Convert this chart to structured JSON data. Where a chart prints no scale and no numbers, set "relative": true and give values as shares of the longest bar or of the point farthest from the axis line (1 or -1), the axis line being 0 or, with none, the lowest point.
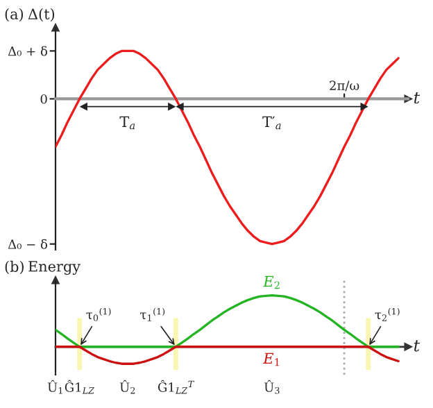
{
  "chart_data": [
    {
      "type": "line",
      "title": "(a)",
      "ylabel": "Δ(t)",
      "xlabel": "t",
      "categories": [
        null,
        null,
        null,
        null,
        null,
        null,
        null,
        null,
        null,
        null,
        null,
        null,
        null,
        null,
        null,
        null,
        null,
        null,
        null,
        null,
        null,
        null,
        null,
        null,
        null,
        null,
        null,
        null,
        null,
        null,
        null,
        null,
        null,
        null,
        null,
        null,
        null,
        null,
        null,
        null,
        null,
        null,
        null,
        null,
        null,
        null,
        null,
        null,
        null,
        null,
        null,
        null,
        null,
        null,
        null,
        null,
        null,
        null
      ],
      "relative": true,
      "series": [
        {
          "color": "#ee1c1c",
          "values": [
            -0.33,
            -0.25,
            -0.16,
            -0.08,
            0,
            0.07,
            0.14,
            0.2,
            0.24,
            0.28,
            0.31,
            0.33,
            0.33,
            0.33,
            0.31,
            0.28,
            0.24,
            0.2,
            0.14,
            0.07,
            0,
            -0.08,
            -0.16,
            -0.25,
            -0.33,
            -0.42,
            -0.51,
            -0.59,
            -0.67,
            -0.74,
            -0.8,
            -0.86,
            -0.91,
            -0.95,
            -0.98,
            -0.99,
            -1,
            -0.99,
            -0.98,
            -0.95,
            -0.91,
            -0.86,
            -0.8,
            -0.74,
            -0.67,
            -0.59,
            -0.51,
            -0.42,
            -0.33,
            -0.25,
            -0.16,
            -0.08,
            0,
            0.07,
            0.14,
            0.2,
            0.24,
            0.28
          ]
        }
      ],
      "annotations": [
        "T$_{a}$",
        "T′$_{a}$",
        "2π/ω",
        "Δ₀ + δ",
        "0",
        "Δ₀ − δ"
      ]
    },
    {
      "type": "line",
      "title": "(b)",
      "ylabel": "Energy",
      "xlabel": "t",
      "relative": true,
      "categories": [
        "Û$_{1}$",
        null,
        null,
        null,
        "Ĝ1$_{LZ}$",
        null,
        null,
        null,
        null,
        null,
        null,
        null,
        "Û$_{2}$",
        null,
        null,
        null,
        null,
        null,
        null,
        null,
        "Ĝ1$_{LZ}$$^{T}$",
        null,
        null,
        null,
        null,
        null,
        null,
        null,
        null,
        null,
        null,
        null,
        null,
        null,
        null,
        null,
        "Û$_{3}$",
        null,
        null,
        null,
        null,
        null,
        null,
        null,
        null,
        null,
        null,
        null,
        null,
        null,
        null,
        null,
        null,
        null,
        null,
        null,
        null,
        null
      ],
      "series": [
        {
          "name": "E$_{2}$",
          "color": "#22b422",
          "values": [
            0.33,
            0.25,
            0.16,
            0.08,
            0,
            0,
            0,
            0,
            0,
            0,
            0,
            0,
            0,
            0,
            0,
            0,
            0,
            0,
            0,
            0,
            0,
            0.08,
            0.16,
            0.25,
            0.33,
            0.42,
            0.51,
            0.59,
            0.67,
            0.74,
            0.8,
            0.86,
            0.91,
            0.95,
            0.98,
            0.99,
            1,
            0.99,
            0.98,
            0.95,
            0.91,
            0.86,
            0.8,
            0.74,
            0.67,
            0.59,
            0.51,
            0.42,
            0.33,
            0.25,
            0.16,
            0.08,
            0,
            0,
            0,
            0,
            0,
            0
          ]
        },
        {
          "name": "E$_{1}$",
          "color": "#cc1111",
          "values": [
            0,
            0,
            0,
            0,
            0,
            -0.07,
            -0.14,
            -0.2,
            -0.24,
            -0.28,
            -0.31,
            -0.33,
            -0.33,
            -0.33,
            -0.31,
            -0.28,
            -0.24,
            -0.2,
            -0.14,
            -0.07,
            0,
            0,
            0,
            0,
            0,
            0,
            0,
            0,
            0,
            0,
            0,
            0,
            0,
            0,
            0,
            0,
            0,
            0,
            0,
            0,
            0,
            0,
            0,
            0,
            0,
            0,
            0,
            0,
            0,
            0,
            0,
            0,
            0,
            -0.07,
            -0.14,
            -0.2,
            -0.24,
            -0.28
          ]
        }
      ],
      "annotations": [
        "τ$_{0}$$^{(1)}$",
        "τ$_{1}$$^{(1)}$",
        "τ$_{2}$$^{(1)}$"
      ]
    }
  ]
}
